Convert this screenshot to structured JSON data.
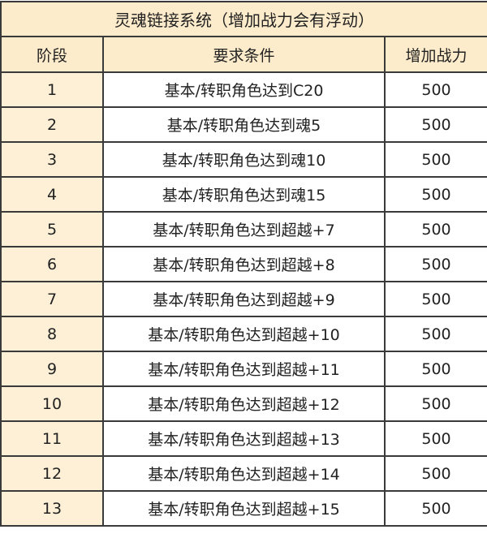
{
  "title": "灵魂链接系统（增加战力会有浮动）",
  "headers": [
    "阶段",
    "要求条件",
    "增加战力"
  ],
  "rows": [
    [
      "1",
      "基本/转职角色达到C20",
      "500"
    ],
    [
      "2",
      "基本/转职角色达到魂5",
      "500"
    ],
    [
      "3",
      "基本/转职角色达到魂10",
      "500"
    ],
    [
      "4",
      "基本/转职角色达到魂15",
      "500"
    ],
    [
      "5",
      "基本/转职角色达到超越+7",
      "500"
    ],
    [
      "6",
      "基本/转职角色达到超越+8",
      "500"
    ],
    [
      "7",
      "基本/转职角色达到超越+9",
      "500"
    ],
    [
      "8",
      "基本/转职角色达到超越+10",
      "500"
    ],
    [
      "9",
      "基本/转职角色达到超越+11",
      "500"
    ],
    [
      "10",
      "基本/转职角色达到超越+12",
      "500"
    ],
    [
      "11",
      "基本/转职角色达到超越+13",
      "500"
    ],
    [
      "12",
      "基本/转职角色达到超越+14",
      "500"
    ],
    [
      "13",
      "基本/转职角色达到超越+15",
      "500"
    ]
  ],
  "colors": {
    "header_bg": "#fdeccb",
    "first_col_bg": "#fdf0d6",
    "border": "#3a3a3a"
  }
}
